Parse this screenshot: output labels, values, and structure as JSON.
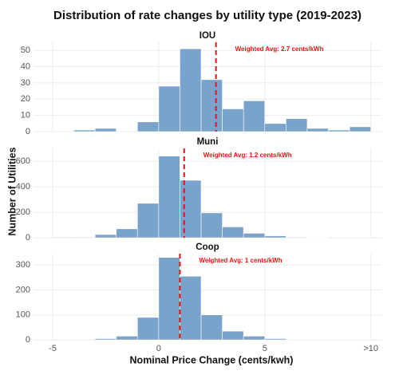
{
  "chart_data": {
    "type": "histogram",
    "title": "Distribution of rate changes by utility type (2019-2023)",
    "xlabel": "Nominal Price Change (cents/kwh)",
    "ylabel": "Number of Utilities",
    "xlim": [
      -5.9,
      10.5
    ],
    "xticks": [
      -5,
      0,
      5,
      {
        "value": 10,
        "label": ">10"
      }
    ],
    "color": "#7aa3cc",
    "line_color": "#ee1111",
    "grid": true,
    "panels": [
      {
        "name": "IOU",
        "bins": [
          -4,
          -3,
          -2,
          -1,
          0,
          1,
          2,
          3,
          4,
          5,
          6,
          7,
          8,
          9,
          10
        ],
        "counts": [
          1,
          2,
          0,
          6,
          28,
          51,
          32,
          14,
          19,
          5,
          8,
          2,
          1,
          3
        ],
        "ylim": [
          0,
          55
        ],
        "yticks": [
          0,
          10,
          20,
          30,
          40,
          50
        ],
        "weighted_avg": 2.7,
        "annotation": "Weighted Avg: 2.7 cents/kWh"
      },
      {
        "name": "Muni",
        "bins": [
          -5,
          -4,
          -3,
          -2,
          -1,
          0,
          1,
          2,
          3,
          4,
          5,
          6,
          7,
          8
        ],
        "counts": [
          5,
          5,
          25,
          70,
          270,
          640,
          450,
          195,
          85,
          35,
          15,
          5,
          3
        ],
        "ylim": [
          0,
          700
        ],
        "yticks": [
          0,
          200,
          400,
          600
        ],
        "weighted_avg": 1.2,
        "annotation": "Weighted Avg: 1.2 cents/kWh"
      },
      {
        "name": "Coop",
        "bins": [
          -3,
          -2,
          -1,
          0,
          1,
          2,
          3,
          4,
          5,
          6
        ],
        "counts": [
          5,
          15,
          90,
          330,
          255,
          100,
          35,
          15,
          5
        ],
        "ylim": [
          0,
          345
        ],
        "yticks": [
          0,
          100,
          200,
          300
        ],
        "weighted_avg": 1,
        "annotation": "Weighted Avg: 1 cents/kWh"
      }
    ]
  }
}
